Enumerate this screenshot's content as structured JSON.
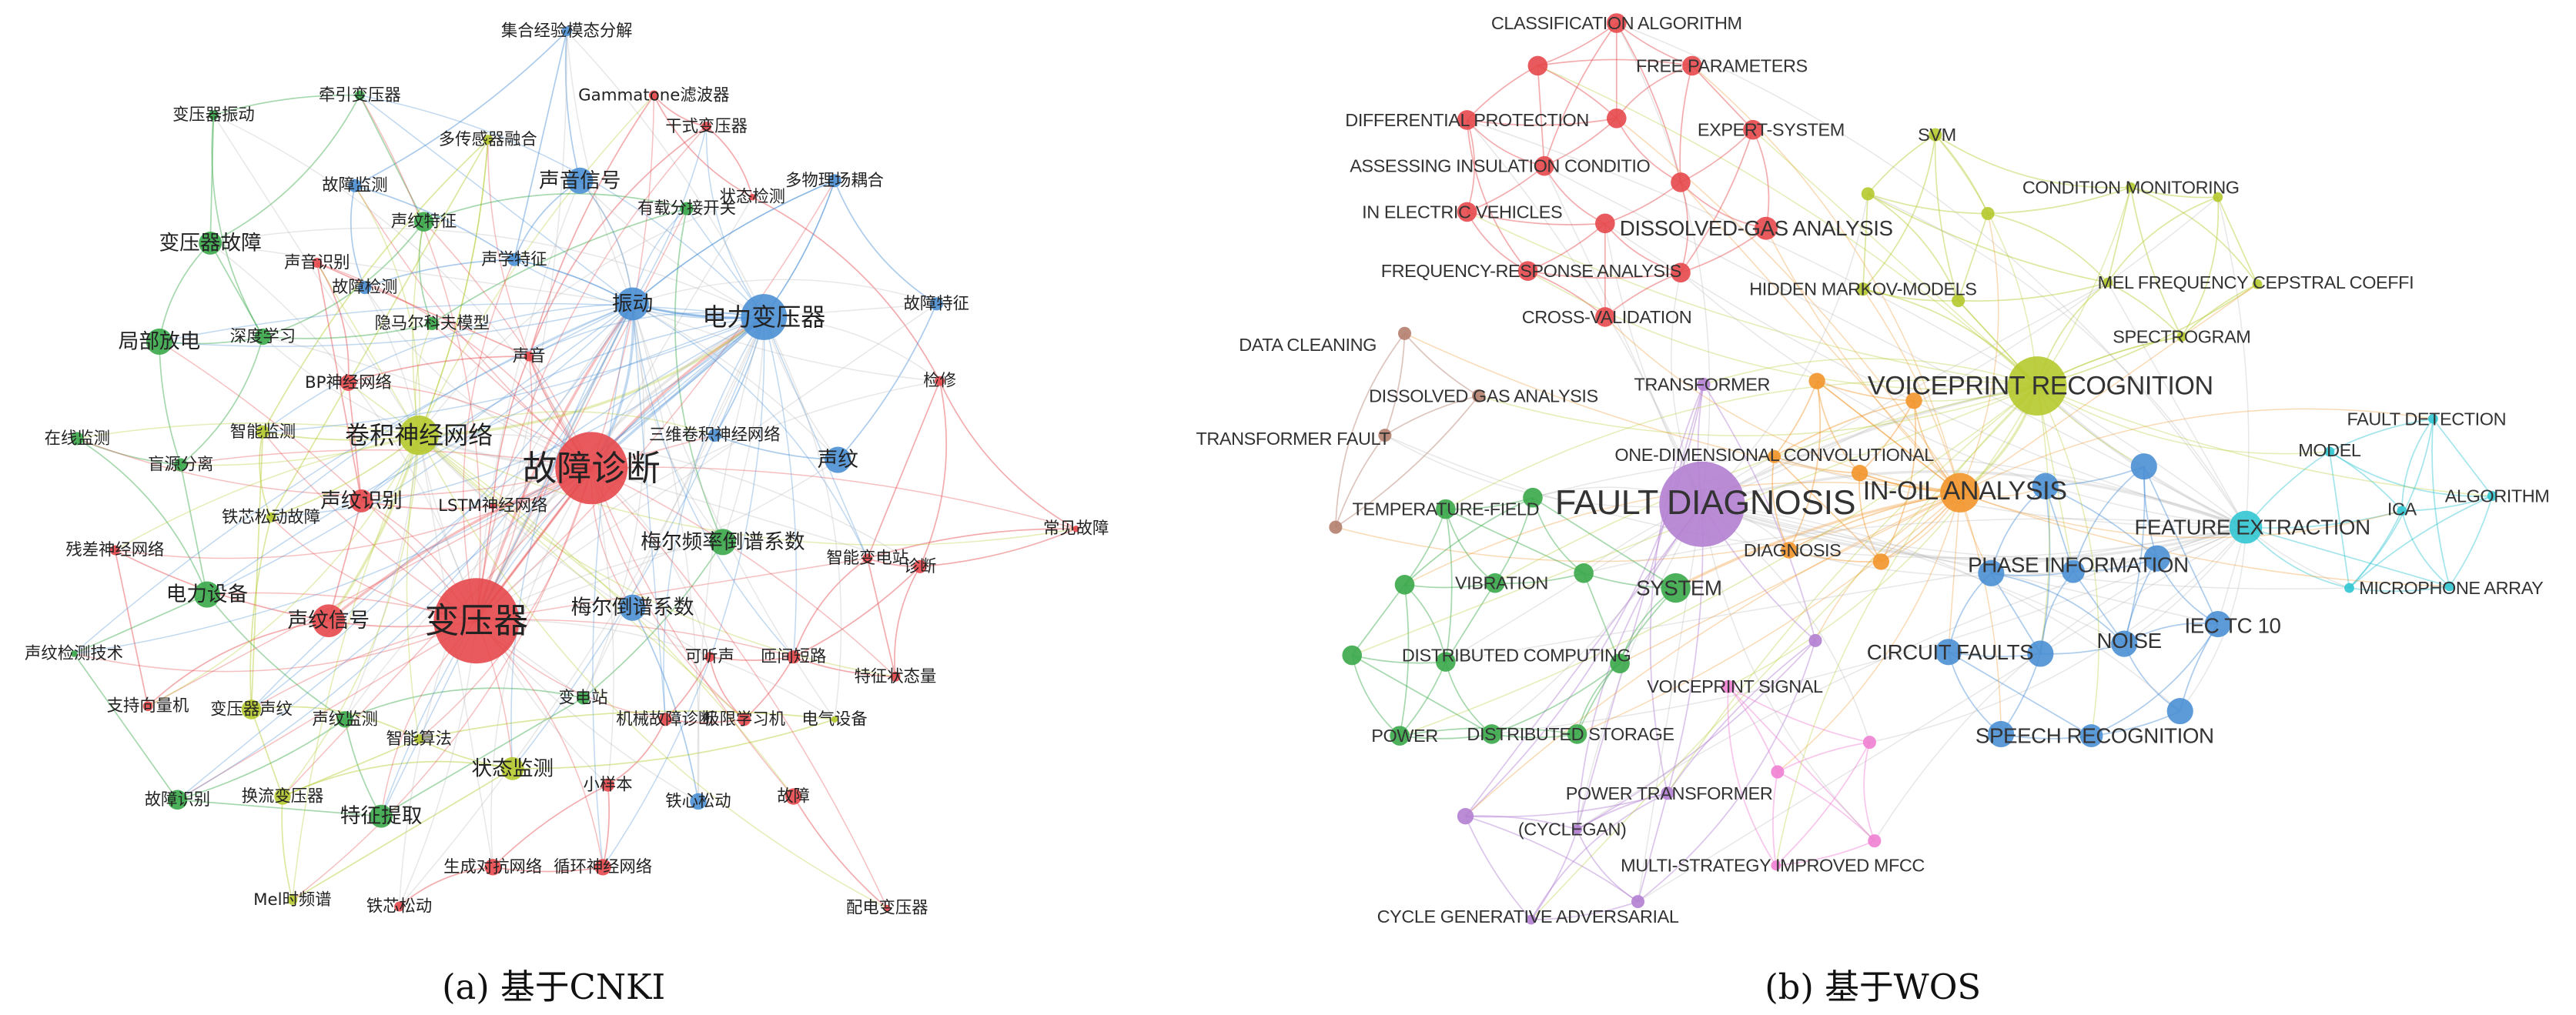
{
  "clusters": {
    "red": "#e5484b",
    "blue": "#4a8fd4",
    "green": "#3aa84a",
    "yellow": "#b5c92c",
    "orange": "#f2952b",
    "purple": "#b27fd2",
    "brown": "#b47e6e",
    "pink": "#f07fd3",
    "cyan": "#32c6d2"
  },
  "panels": [
    {
      "caption": "(a) 基于CNKI",
      "nodes": [
        {
          "label": "集合经验模态分解",
          "cluster": "blue"
        },
        {
          "label": "Gammatone滤波器",
          "cluster": "red"
        },
        {
          "label": "牵引变压器",
          "cluster": "green"
        },
        {
          "label": "变压器振动",
          "cluster": "green"
        },
        {
          "label": "干式变压器",
          "cluster": "red"
        },
        {
          "label": "多传感器融合",
          "cluster": "yellow"
        },
        {
          "label": "声音信号",
          "cluster": "blue"
        },
        {
          "label": "故障监测",
          "cluster": "blue"
        },
        {
          "label": "有载分接开关",
          "cluster": "green"
        },
        {
          "label": "状态检测",
          "cluster": "red"
        },
        {
          "label": "多物理场耦合",
          "cluster": "blue"
        },
        {
          "label": "声纹特征",
          "cluster": "green"
        },
        {
          "label": "变压器故障",
          "cluster": "green"
        },
        {
          "label": "声音识别",
          "cluster": "red"
        },
        {
          "label": "声学特征",
          "cluster": "blue"
        },
        {
          "label": "故障检测",
          "cluster": "blue"
        },
        {
          "label": "振动",
          "cluster": "blue"
        },
        {
          "label": "电力变压器",
          "cluster": "blue"
        },
        {
          "label": "故障特征",
          "cluster": "blue"
        },
        {
          "label": "隐马尔科夫模型",
          "cluster": "green"
        },
        {
          "label": "局部放电",
          "cluster": "green"
        },
        {
          "label": "深度学习",
          "cluster": "green"
        },
        {
          "label": "声音",
          "cluster": "red"
        },
        {
          "label": "BP神经网络",
          "cluster": "red"
        },
        {
          "label": "检修",
          "cluster": "red"
        },
        {
          "label": "在线监测",
          "cluster": "green"
        },
        {
          "label": "智能监测",
          "cluster": "yellow"
        },
        {
          "label": "卷积神经网络",
          "cluster": "yellow"
        },
        {
          "label": "故障诊断",
          "cluster": "red"
        },
        {
          "label": "三维卷积神经网络",
          "cluster": "blue"
        },
        {
          "label": "声纹",
          "cluster": "blue"
        },
        {
          "label": "盲源分离",
          "cluster": "green"
        },
        {
          "label": "声纹识别",
          "cluster": "red"
        },
        {
          "label": "LSTM神经网络",
          "cluster": "red"
        },
        {
          "label": "铁芯松动故障",
          "cluster": "yellow"
        },
        {
          "label": "残差神经网络",
          "cluster": "red"
        },
        {
          "label": "梅尔频率倒谱系数",
          "cluster": "green"
        },
        {
          "label": "常见故障",
          "cluster": "red"
        },
        {
          "label": "智能变电站",
          "cluster": "red"
        },
        {
          "label": "诊断",
          "cluster": "red"
        },
        {
          "label": "电力设备",
          "cluster": "green"
        },
        {
          "label": "声纹信号",
          "cluster": "red"
        },
        {
          "label": "变压器",
          "cluster": "red"
        },
        {
          "label": "梅尔倒谱系数",
          "cluster": "blue"
        },
        {
          "label": "声纹检测技术",
          "cluster": "green"
        },
        {
          "label": "可听声",
          "cluster": "red"
        },
        {
          "label": "匝间短路",
          "cluster": "red"
        },
        {
          "label": "特征状态量",
          "cluster": "red"
        },
        {
          "label": "变电站",
          "cluster": "green"
        },
        {
          "label": "支持向量机",
          "cluster": "red"
        },
        {
          "label": "变压器声纹",
          "cluster": "yellow"
        },
        {
          "label": "声纹监测",
          "cluster": "green"
        },
        {
          "label": "机械故障诊断",
          "cluster": "red"
        },
        {
          "label": "极限学习机",
          "cluster": "red"
        },
        {
          "label": "电气设备",
          "cluster": "yellow"
        },
        {
          "label": "智能算法",
          "cluster": "yellow"
        },
        {
          "label": "状态监测",
          "cluster": "yellow"
        },
        {
          "label": "小样本",
          "cluster": "red"
        },
        {
          "label": "故障识别",
          "cluster": "green"
        },
        {
          "label": "换流变压器",
          "cluster": "yellow"
        },
        {
          "label": "铁心松动",
          "cluster": "blue"
        },
        {
          "label": "故障",
          "cluster": "red"
        },
        {
          "label": "特征提取",
          "cluster": "green"
        },
        {
          "label": "生成对抗网络",
          "cluster": "red"
        },
        {
          "label": "循环神经网络",
          "cluster": "red"
        },
        {
          "label": "Mel时频谱",
          "cluster": "yellow"
        },
        {
          "label": "铁芯松动",
          "cluster": "red"
        },
        {
          "label": "配电变压器",
          "cluster": "red"
        }
      ]
    },
    {
      "caption": "(b) 基于WOS",
      "nodes": [
        {
          "label": "CLASSIFICATION ALGORITHM",
          "cluster": "red"
        },
        {
          "label": "FREE PARAMETERS",
          "cluster": "red"
        },
        {
          "label": "",
          "cluster": "red"
        },
        {
          "label": "DIFFERENTIAL PROTECTION",
          "cluster": "red"
        },
        {
          "label": "",
          "cluster": "red"
        },
        {
          "label": "EXPERT-SYSTEM",
          "cluster": "red"
        },
        {
          "label": "ASSESSING INSULATION CONDITIO",
          "cluster": "red"
        },
        {
          "label": "",
          "cluster": "red"
        },
        {
          "label": "IN ELECTRIC VEHICLES",
          "cluster": "red"
        },
        {
          "label": "",
          "cluster": "red"
        },
        {
          "label": "DISSOLVED-GAS ANALYSIS",
          "cluster": "red"
        },
        {
          "label": "FREQUENCY-RESPONSE ANALYSIS",
          "cluster": "red"
        },
        {
          "label": "",
          "cluster": "red"
        },
        {
          "label": "CROSS-VALIDATION",
          "cluster": "red"
        },
        {
          "label": "SVM",
          "cluster": "yellow"
        },
        {
          "label": "",
          "cluster": "yellow"
        },
        {
          "label": "",
          "cluster": "yellow"
        },
        {
          "label": "CONDITION MONITORING",
          "cluster": "yellow"
        },
        {
          "label": "",
          "cluster": "yellow"
        },
        {
          "label": "HIDDEN MARKOV-MODELS",
          "cluster": "yellow"
        },
        {
          "label": "",
          "cluster": "yellow"
        },
        {
          "label": "MEL FREQUENCY CEPSTRAL COEFFI",
          "cluster": "yellow"
        },
        {
          "label": "",
          "cluster": "yellow"
        },
        {
          "label": "SPECTROGRAM",
          "cluster": "yellow"
        },
        {
          "label": "VOICEPRINT RECOGNITION",
          "cluster": "yellow"
        },
        {
          "label": "DATA CLEANING",
          "cluster": "brown"
        },
        {
          "label": "DISSOLVED GAS ANALYSIS",
          "cluster": "brown"
        },
        {
          "label": "TRANSFORMER FAULT",
          "cluster": "brown"
        },
        {
          "label": "",
          "cluster": "brown"
        },
        {
          "label": "TRANSFORMER",
          "cluster": "purple"
        },
        {
          "label": "FAULT DIAGNOSIS",
          "cluster": "purple"
        },
        {
          "label": "",
          "cluster": "purple"
        },
        {
          "label": "POWER TRANSFORMER",
          "cluster": "purple"
        },
        {
          "label": "(CYCLEGAN)",
          "cluster": "purple"
        },
        {
          "label": "",
          "cluster": "purple"
        },
        {
          "label": "CYCLE GENERATIVE ADVERSARIAL",
          "cluster": "purple"
        },
        {
          "label": "",
          "cluster": "purple"
        },
        {
          "label": "",
          "cluster": "orange"
        },
        {
          "label": "",
          "cluster": "orange"
        },
        {
          "label": "ONE-DIMENSIONAL CONVOLUTIONAL",
          "cluster": "orange"
        },
        {
          "label": "",
          "cluster": "orange"
        },
        {
          "label": "IN-OIL ANALYSIS",
          "cluster": "orange"
        },
        {
          "label": "DIAGNOSIS",
          "cluster": "orange"
        },
        {
          "label": "",
          "cluster": "orange"
        },
        {
          "label": "TEMPERATURE-FIELD",
          "cluster": "green"
        },
        {
          "label": "",
          "cluster": "green"
        },
        {
          "label": "",
          "cluster": "green"
        },
        {
          "label": "VIBRATION",
          "cluster": "green"
        },
        {
          "label": "",
          "cluster": "green"
        },
        {
          "label": "SYSTEM",
          "cluster": "green"
        },
        {
          "label": "",
          "cluster": "green"
        },
        {
          "label": "DISTRIBUTED COMPUTING",
          "cluster": "green"
        },
        {
          "label": "",
          "cluster": "green"
        },
        {
          "label": "POWER",
          "cluster": "green"
        },
        {
          "label": "DISTRIBUTED STORAGE",
          "cluster": "green"
        },
        {
          "label": "",
          "cluster": "green"
        },
        {
          "label": "VOICEPRINT SIGNAL",
          "cluster": "pink"
        },
        {
          "label": "",
          "cluster": "pink"
        },
        {
          "label": "",
          "cluster": "pink"
        },
        {
          "label": "MULTI-STRATEGY IMPROVED MFCC",
          "cluster": "pink"
        },
        {
          "label": "",
          "cluster": "pink"
        },
        {
          "label": "",
          "cluster": "blue"
        },
        {
          "label": "",
          "cluster": "blue"
        },
        {
          "label": "",
          "cluster": "blue"
        },
        {
          "label": "PHASE INFORMATION",
          "cluster": "blue"
        },
        {
          "label": "",
          "cluster": "blue"
        },
        {
          "label": "IEC TC 10",
          "cluster": "blue"
        },
        {
          "label": "CIRCUIT FAULTS",
          "cluster": "blue"
        },
        {
          "label": "",
          "cluster": "blue"
        },
        {
          "label": "NOISE",
          "cluster": "blue"
        },
        {
          "label": "SPEECH RECOGNITION",
          "cluster": "blue"
        },
        {
          "label": "",
          "cluster": "blue"
        },
        {
          "label": "",
          "cluster": "blue"
        },
        {
          "label": "FAULT DETECTION",
          "cluster": "cyan"
        },
        {
          "label": "MODEL",
          "cluster": "cyan"
        },
        {
          "label": "FEATURE EXTRACTION",
          "cluster": "cyan"
        },
        {
          "label": "ICA",
          "cluster": "cyan"
        },
        {
          "label": "ALGORITHM",
          "cluster": "cyan"
        },
        {
          "label": "MICROPHONE ARRAY",
          "cluster": "cyan"
        },
        {
          "label": "",
          "cluster": "cyan"
        }
      ]
    }
  ]
}
